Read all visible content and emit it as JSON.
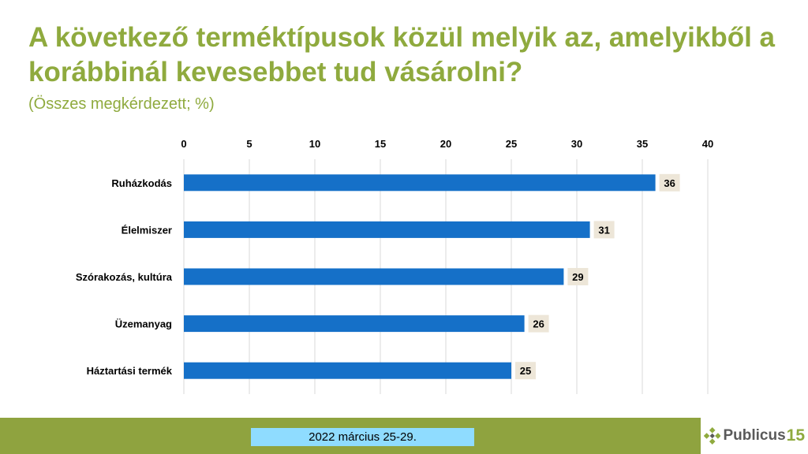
{
  "header": {
    "title": "A következő terméktípusok közül melyik az, amelyikből a korábbinál kevesebbet tud vásárolni?",
    "subtitle": "(Összes megkérdezett; %)"
  },
  "footer": {
    "date": "2022 március 25-29.",
    "logo_text": "Publicus",
    "logo_number": "15"
  },
  "colors": {
    "title": "#8faa3e",
    "bar": "#1570c8",
    "label_bg": "#ede6d8",
    "footer_bar": "#8fa33f",
    "date_bg": "#8fdcff"
  },
  "chart_data": {
    "type": "bar",
    "orientation": "horizontal",
    "categories": [
      "Ruházkodás",
      "Élelmiszer",
      "Szórakozás, kultúra",
      "Üzemanyag",
      "Háztartási termék"
    ],
    "values": [
      36,
      31,
      29,
      26,
      25
    ],
    "xlim": [
      0,
      40
    ],
    "xticks": [
      0,
      5,
      10,
      15,
      20,
      25,
      30,
      35,
      40
    ],
    "axis_position": "top",
    "grid": true
  }
}
